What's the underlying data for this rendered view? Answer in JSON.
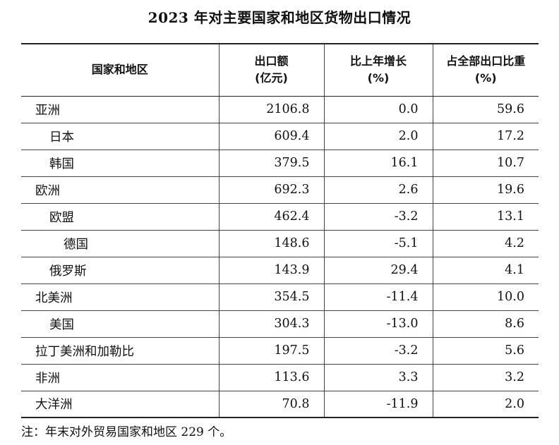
{
  "title": "2023 年对主要国家和地区货物出口情况",
  "header": {
    "region": "国家和地区",
    "export_line1": "出口额",
    "export_line2": "(亿元)",
    "growth_line1": "比上年增长",
    "growth_line2": "(%)",
    "share_line1": "占全部出口比重",
    "share_line2": "(%)"
  },
  "rows": [
    {
      "name": "亚洲",
      "level": 0,
      "export": "2106.8",
      "growth": "0.0",
      "share": "59.6"
    },
    {
      "name": "日本",
      "level": 1,
      "export": "609.4",
      "growth": "2.0",
      "share": "17.2"
    },
    {
      "name": "韩国",
      "level": 1,
      "export": "379.5",
      "growth": "16.1",
      "share": "10.7"
    },
    {
      "name": "欧洲",
      "level": 0,
      "export": "692.3",
      "growth": "2.6",
      "share": "19.6"
    },
    {
      "name": "欧盟",
      "level": 1,
      "export": "462.4",
      "growth": "-3.2",
      "share": "13.1"
    },
    {
      "name": "德国",
      "level": 2,
      "export": "148.6",
      "growth": "-5.1",
      "share": "4.2"
    },
    {
      "name": "俄罗斯",
      "level": 1,
      "export": "143.9",
      "growth": "29.4",
      "share": "4.1"
    },
    {
      "name": "北美洲",
      "level": 0,
      "export": "354.5",
      "growth": "-11.4",
      "share": "10.0"
    },
    {
      "name": "美国",
      "level": 1,
      "export": "304.3",
      "growth": "-13.0",
      "share": "8.6"
    },
    {
      "name": "拉丁美洲和加勒比",
      "level": 0,
      "export": "197.5",
      "growth": "-3.2",
      "share": "5.6"
    },
    {
      "name": "非洲",
      "level": 0,
      "export": "113.6",
      "growth": "3.3",
      "share": "3.2"
    },
    {
      "name": "大洋洲",
      "level": 0,
      "export": "70.8",
      "growth": "-11.9",
      "share": "2.0"
    }
  ],
  "note": "注：年末对外贸易国家和地区 229 个。"
}
